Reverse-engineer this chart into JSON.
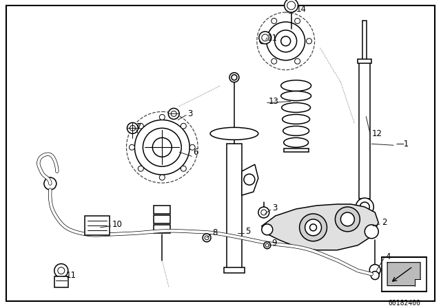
{
  "bg_color": "#ffffff",
  "line_color": "#000000",
  "diagram_code": "00182400",
  "label_fontsize": 8.5,
  "line_width": 1.1,
  "fig_width": 6.4,
  "fig_height": 4.48,
  "dpi": 100
}
